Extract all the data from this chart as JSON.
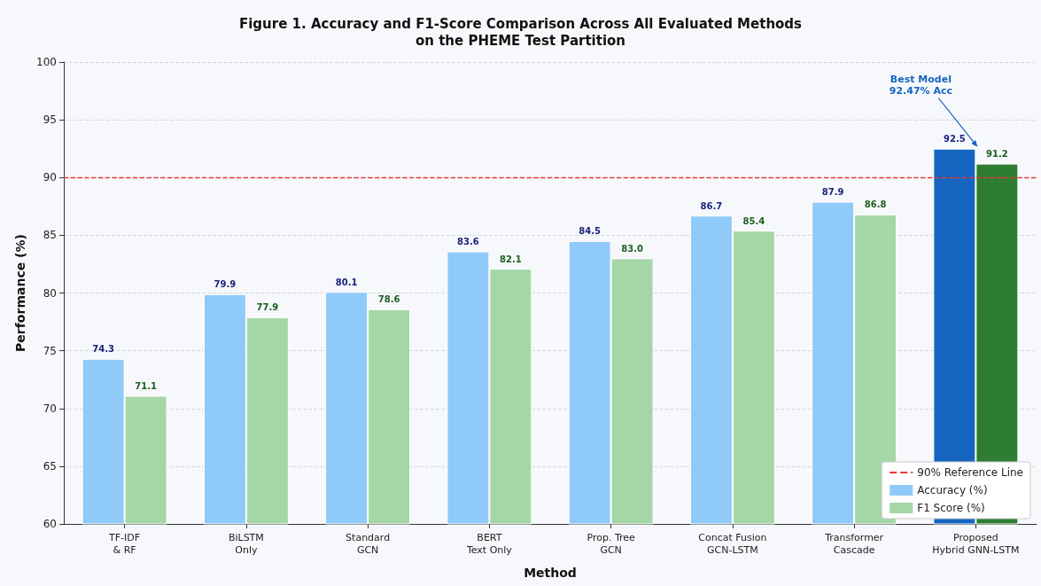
{
  "chart_data": {
    "type": "bar",
    "title": "Figure 1. Accuracy and F1-Score Comparison Across All Evaluated Methods\non the PHEME Test Partition",
    "xlabel": "Method",
    "ylabel": "Performance (%)",
    "categories": [
      "TF-IDF\n& RF",
      "BiLSTM\nOnly",
      "Standard\nGCN",
      "BERT\nText Only",
      "Prop. Tree\nGCN",
      "Concat Fusion\nGCN-LSTM",
      "Transformer\nCascade",
      "Proposed\nHybrid GNN-LSTM"
    ],
    "series": [
      {
        "name": "Accuracy (%)",
        "color": "#90caf9",
        "colors": [
          "#90caf9",
          "#90caf9",
          "#90caf9",
          "#90caf9",
          "#90caf9",
          "#90caf9",
          "#90caf9",
          "#1565c0"
        ],
        "values": [
          74.3,
          79.9,
          80.1,
          83.6,
          84.5,
          86.7,
          87.9,
          92.5
        ],
        "value_labels": [
          "74.3",
          "79.9",
          "80.1",
          "83.6",
          "84.5",
          "86.7",
          "87.9",
          "92.5"
        ]
      },
      {
        "name": "F1 Score (%)",
        "color": "#a5d6a7",
        "colors": [
          "#a5d6a7",
          "#a5d6a7",
          "#a5d6a7",
          "#a5d6a7",
          "#a5d6a7",
          "#a5d6a7",
          "#a5d6a7",
          "#2e7d32"
        ],
        "values": [
          71.1,
          77.9,
          78.6,
          82.1,
          83.0,
          85.4,
          86.8,
          91.2
        ],
        "value_labels": [
          "71.1",
          "77.9",
          "78.6",
          "82.1",
          "83.0",
          "85.4",
          "86.8",
          "91.2"
        ]
      }
    ],
    "ylim": [
      60,
      100
    ],
    "yticks": [
      60,
      65,
      70,
      75,
      80,
      85,
      90,
      95,
      100
    ],
    "grid": "y",
    "legend": "bottom right",
    "ref_lines": [
      {
        "axis": "y",
        "value": 90,
        "label": "90% Reference Line",
        "color": "#e53935",
        "line_style": "dashed"
      }
    ],
    "annotations": [
      {
        "text": "Best Model\n92.47% Acc",
        "x": "Proposed\nHybrid GNN-LSTM",
        "y": 92.5
      }
    ]
  }
}
